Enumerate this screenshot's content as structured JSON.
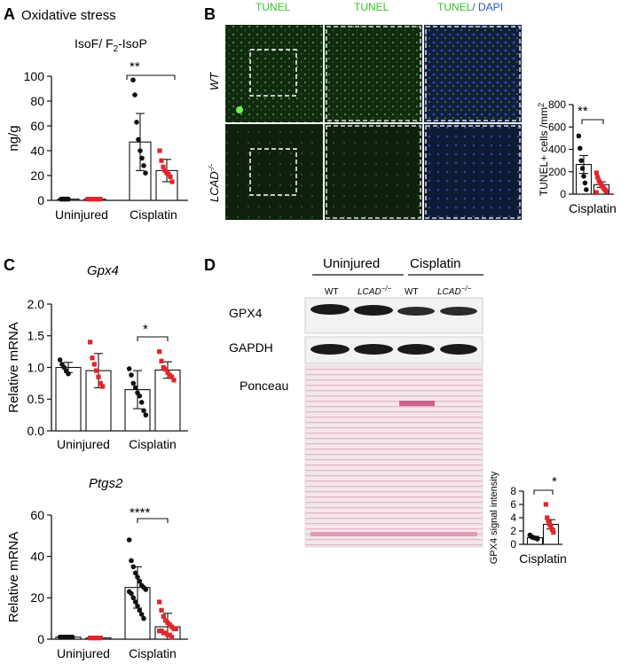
{
  "colors": {
    "wt": "#111111",
    "lcad": "#e0262a",
    "tunel": "#36c22b",
    "dapi": "#2255cc",
    "ponceau": "#e8b7c8"
  },
  "panels": {
    "a": {
      "letter": "A",
      "heading": "Oxidative stress",
      "title_main": "IsoF/ F",
      "title_sub": "2",
      "title_end": "-IsoP",
      "sig": "**"
    },
    "b": {
      "letter": "B",
      "col1": "TUNEL",
      "col2": "TUNEL",
      "col3a": "TUNEL",
      "col3b": "/ DAPI",
      "row1": "WT",
      "row2": "LCAD",
      "row2_sup": "-/-",
      "sig": "**"
    },
    "c": {
      "letter": "C",
      "gene1": "Gpx4",
      "gene2": "Ptgs2",
      "sig1": "*",
      "sig2": "****"
    },
    "d": {
      "letter": "D",
      "group1": "Uninjured",
      "group2": "Cisplatin",
      "lanes": [
        "WT",
        "LCAD",
        "WT",
        "LCAD"
      ],
      "lane_sup": "−/−",
      "blot1": "GPX4",
      "blot2": "GAPDH",
      "blot3": "Ponceau",
      "sig": "*"
    }
  },
  "chart_data": [
    {
      "id": "A",
      "type": "bar",
      "ylabel": "ng/g",
      "ylim": [
        0,
        100
      ],
      "yticks": [
        0,
        20,
        40,
        60,
        80,
        100
      ],
      "groups": [
        "Uninjured",
        "Cisplatin"
      ],
      "series": [
        {
          "name": "WT",
          "values": [
            1,
            47
          ],
          "err": [
            0,
            23
          ],
          "points": [
            [
              1,
              1,
              1,
              1,
              1
            ],
            [
              97,
              85,
              63,
              49,
              40,
              34,
              28,
              22
            ]
          ]
        },
        {
          "name": "LCAD-/-",
          "values": [
            1,
            24
          ],
          "err": [
            0,
            9
          ],
          "points": [
            [
              1,
              1,
              1,
              1,
              1,
              1,
              1,
              1
            ],
            [
              40,
              32,
              27,
              24,
              22,
              21,
              19,
              15
            ]
          ]
        }
      ]
    },
    {
      "id": "B",
      "type": "bar",
      "ylabel": "TUNEL+ cells /mm",
      "ylabel_sup": "2",
      "ylim": [
        0,
        800
      ],
      "yticks": [
        0,
        200,
        400,
        600,
        800
      ],
      "groups": [
        "Cisplatin"
      ],
      "series": [
        {
          "name": "WT",
          "values": [
            265
          ],
          "err": [
            80
          ],
          "points": [
            [
              520,
              410,
              300,
              230,
              160,
              100,
              40
            ]
          ]
        },
        {
          "name": "LCAD-/-",
          "values": [
            85
          ],
          "err": [
            25
          ],
          "points": [
            [
              190,
              150,
              120,
              100,
              80,
              65,
              50,
              35,
              25,
              15
            ]
          ]
        }
      ]
    },
    {
      "id": "C1",
      "type": "bar",
      "ylabel": "Relative mRNA",
      "ylim": [
        0,
        2.0
      ],
      "yticks": [
        0.0,
        0.5,
        1.0,
        1.5,
        2.0
      ],
      "groups": [
        "Uninjured",
        "Cisplatin"
      ],
      "series": [
        {
          "name": "WT",
          "values": [
            1.0,
            0.65
          ],
          "err": [
            0.08,
            0.3
          ],
          "points": [
            [
              1.12,
              1.05,
              1.0,
              0.95,
              0.9
            ],
            [
              0.98,
              0.88,
              0.75,
              0.68,
              0.6,
              0.55,
              0.45,
              0.32,
              0.25
            ]
          ]
        },
        {
          "name": "LCAD-/-",
          "values": [
            0.95,
            0.96
          ],
          "err": [
            0.27,
            0.13
          ],
          "points": [
            [
              1.4,
              1.15,
              1.05,
              0.95,
              0.85,
              0.75,
              0.7
            ],
            [
              1.25,
              1.1,
              1.0,
              0.97,
              0.92,
              0.88,
              0.85,
              0.8
            ]
          ]
        }
      ]
    },
    {
      "id": "C2",
      "type": "bar",
      "ylabel": "Relative mRNA",
      "ylim": [
        0,
        60
      ],
      "yticks": [
        0,
        20,
        40,
        60
      ],
      "groups": [
        "Uninjured",
        "Cisplatin"
      ],
      "series": [
        {
          "name": "WT",
          "values": [
            1,
            25
          ],
          "err": [
            0.4,
            10
          ],
          "points": [
            [
              1,
              1,
              1,
              1,
              1,
              1,
              1
            ],
            [
              48,
              38,
              35,
              32,
              30,
              28,
              26,
              25,
              24,
              23,
              22,
              20,
              18,
              16,
              14,
              12,
              10
            ]
          ]
        },
        {
          "name": "LCAD-/-",
          "values": [
            0.6,
            6
          ],
          "err": [
            0.2,
            6.5
          ],
          "points": [
            [
              0.6,
              0.6,
              0.6,
              0.6,
              0.6,
              0.6
            ],
            [
              18,
              14,
              11,
              9,
              8,
              7,
              6,
              5,
              5,
              4,
              4,
              3,
              3,
              2,
              2,
              1
            ]
          ]
        }
      ]
    },
    {
      "id": "D",
      "type": "bar",
      "ylabel": "GPX4 signal intensity",
      "ylim": [
        0,
        8
      ],
      "yticks": [
        0,
        2,
        4,
        6,
        8
      ],
      "groups": [
        "Cisplatin"
      ],
      "series": [
        {
          "name": "WT",
          "values": [
            1.0
          ],
          "err": [
            0.2
          ],
          "points": [
            [
              1.4,
              1.2,
              1.1,
              1.0,
              0.95,
              0.9,
              0.8
            ]
          ]
        },
        {
          "name": "LCAD-/-",
          "values": [
            3.0
          ],
          "err": [
            0.7
          ],
          "points": [
            [
              6.0,
              4.0,
              3.5,
              3.0,
              2.6,
              2.2,
              1.8
            ]
          ]
        }
      ]
    }
  ]
}
